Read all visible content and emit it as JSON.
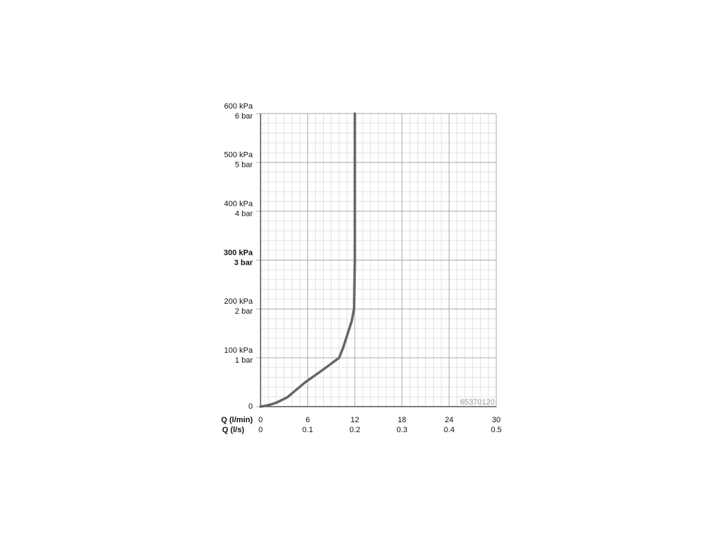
{
  "chart_data": {
    "type": "line",
    "x_label": "Q (l/min)",
    "x2_label": "Q (l/s)",
    "annotation": "65370120",
    "xlim": [
      0,
      30
    ],
    "xticks": [
      0,
      6,
      12,
      18,
      24,
      30
    ],
    "x2lim": [
      0,
      0.5
    ],
    "x2ticks": [
      0,
      0.1,
      0.2,
      0.3,
      0.4,
      0.5
    ],
    "ylim": [
      0,
      600
    ],
    "yticks": [
      0,
      {
        "value": 100,
        "label": "100 kPa"
      },
      {
        "value": 200,
        "label": "200 kPa"
      },
      {
        "value": 300,
        "label": "300 kPa"
      },
      {
        "value": 400,
        "label": "400 kPa"
      },
      {
        "value": 500,
        "label": "500 kPa"
      },
      {
        "value": 600,
        "label": "600 kPa"
      }
    ],
    "yticks_bar": [
      {
        "value": 100,
        "label": "1 bar"
      },
      {
        "value": 200,
        "label": "2 bar"
      },
      {
        "value": 300,
        "label": "3 bar"
      },
      {
        "value": 400,
        "label": "4 bar"
      },
      {
        "value": 500,
        "label": "5 bar"
      },
      {
        "value": 600,
        "label": "6 bar"
      }
    ],
    "bold_ytick": 300,
    "grid": true,
    "color": "#666666",
    "x": [
      0,
      1,
      2,
      3.4,
      5.7,
      7.9,
      10,
      10.5,
      11.1,
      11.6,
      11.9,
      12,
      12
    ],
    "values": [
      0,
      3,
      8,
      19,
      50,
      75,
      100,
      120,
      150,
      175,
      200,
      300,
      600
    ]
  }
}
